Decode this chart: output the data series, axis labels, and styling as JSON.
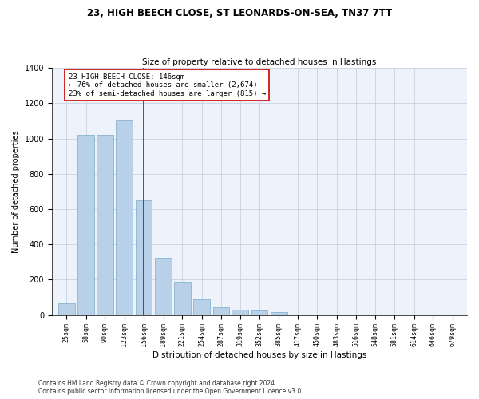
{
  "title_line1": "23, HIGH BEECH CLOSE, ST LEONARDS-ON-SEA, TN37 7TT",
  "title_line2": "Size of property relative to detached houses in Hastings",
  "xlabel": "Distribution of detached houses by size in Hastings",
  "ylabel": "Number of detached properties",
  "footnote1": "Contains HM Land Registry data © Crown copyright and database right 2024.",
  "footnote2": "Contains public sector information licensed under the Open Government Licence v3.0.",
  "annotation_line1": "23 HIGH BEECH CLOSE: 146sqm",
  "annotation_line2": "← 76% of detached houses are smaller (2,674)",
  "annotation_line3": "23% of semi-detached houses are larger (815) →",
  "categories": [
    25,
    58,
    90,
    123,
    156,
    189,
    221,
    254,
    287,
    319,
    352,
    385,
    417,
    450,
    483,
    516,
    548,
    581,
    614,
    646,
    679
  ],
  "values": [
    65,
    1020,
    1020,
    1100,
    650,
    325,
    185,
    90,
    45,
    30,
    25,
    15,
    0,
    0,
    0,
    0,
    0,
    0,
    0,
    0,
    0
  ],
  "bar_color": "#b8d0e8",
  "bar_edge_color": "#7aaac8",
  "vline_color": "#cc0000",
  "vline_x": 156,
  "ylim": [
    0,
    1400
  ],
  "yticks": [
    0,
    200,
    400,
    600,
    800,
    1000,
    1200,
    1400
  ],
  "background_color": "#eef2fa",
  "grid_color": "#c8d0e0",
  "annotation_box_color": "#ffffff",
  "annotation_border_color": "#cc0000",
  "title1_fontsize": 8.5,
  "title2_fontsize": 7.5,
  "xlabel_fontsize": 7.5,
  "ylabel_fontsize": 7.0,
  "tick_fontsize": 6.0,
  "ytick_fontsize": 7.0,
  "footnote_fontsize": 5.5,
  "annotation_fontsize": 6.5
}
